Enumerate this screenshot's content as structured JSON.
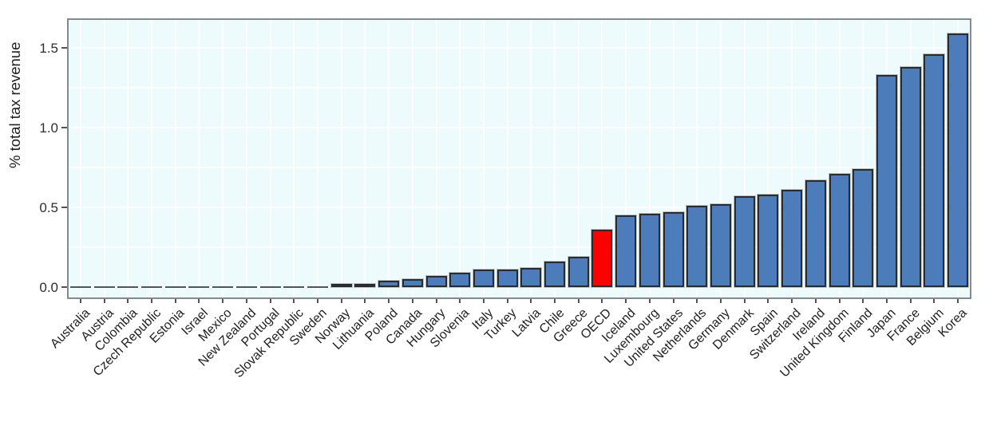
{
  "figure": {
    "background": "#ffffff",
    "plot_background": "#eefbfc",
    "grid_color": "#ffffff",
    "frame_color": "#818a8f",
    "bar_fill": "#4d7cba",
    "bar_stroke": "#2b2b2b",
    "highlight_fill": "#fd0000",
    "zero_dash_color": "#4f565a",
    "text_color": "#1f1f1f"
  },
  "chart_data": {
    "type": "bar",
    "title": "",
    "xlabel": "",
    "ylabel": "% total tax revenue",
    "ylim": [
      -0.075,
      1.685
    ],
    "yticks": [
      0,
      0.5,
      1.0,
      1.5
    ],
    "ytick_labels": [
      "0.0",
      "0.5",
      "1.0",
      "1.5"
    ],
    "grid": "white gridlines on pale cyan background, horizontal every 0.25, vertical at each bar center",
    "legend_position": "none",
    "highlight_category": "OECD",
    "highlight_color": "#fd0000",
    "categories": [
      "Australia",
      "Austria",
      "Colombia",
      "Czech Republic",
      "Estonia",
      "Israel",
      "Mexico",
      "New Zealand",
      "Portugal",
      "Slovak Republic",
      "Sweden",
      "Norway",
      "Lithuania",
      "Poland",
      "Canada",
      "Hungary",
      "Slovenia",
      "Italy",
      "Turkey",
      "Latvia",
      "Chile",
      "Greece",
      "OECD",
      "Iceland",
      "Luxembourg",
      "United States",
      "Netherlands",
      "Germany",
      "Denmark",
      "Spain",
      "Switzerland",
      "Ireland",
      "United Kingdom",
      "Finland",
      "Japan",
      "France",
      "Belgium",
      "Korea"
    ],
    "values": [
      0,
      0,
      0,
      0,
      0,
      0,
      0,
      0,
      0,
      0,
      0,
      0.01,
      0.02,
      0.04,
      0.05,
      0.07,
      0.09,
      0.11,
      0.11,
      0.12,
      0.16,
      0.19,
      0.36,
      0.45,
      0.46,
      0.47,
      0.51,
      0.52,
      0.57,
      0.58,
      0.61,
      0.67,
      0.71,
      0.74,
      1.33,
      1.38,
      1.46,
      1.59
    ]
  }
}
